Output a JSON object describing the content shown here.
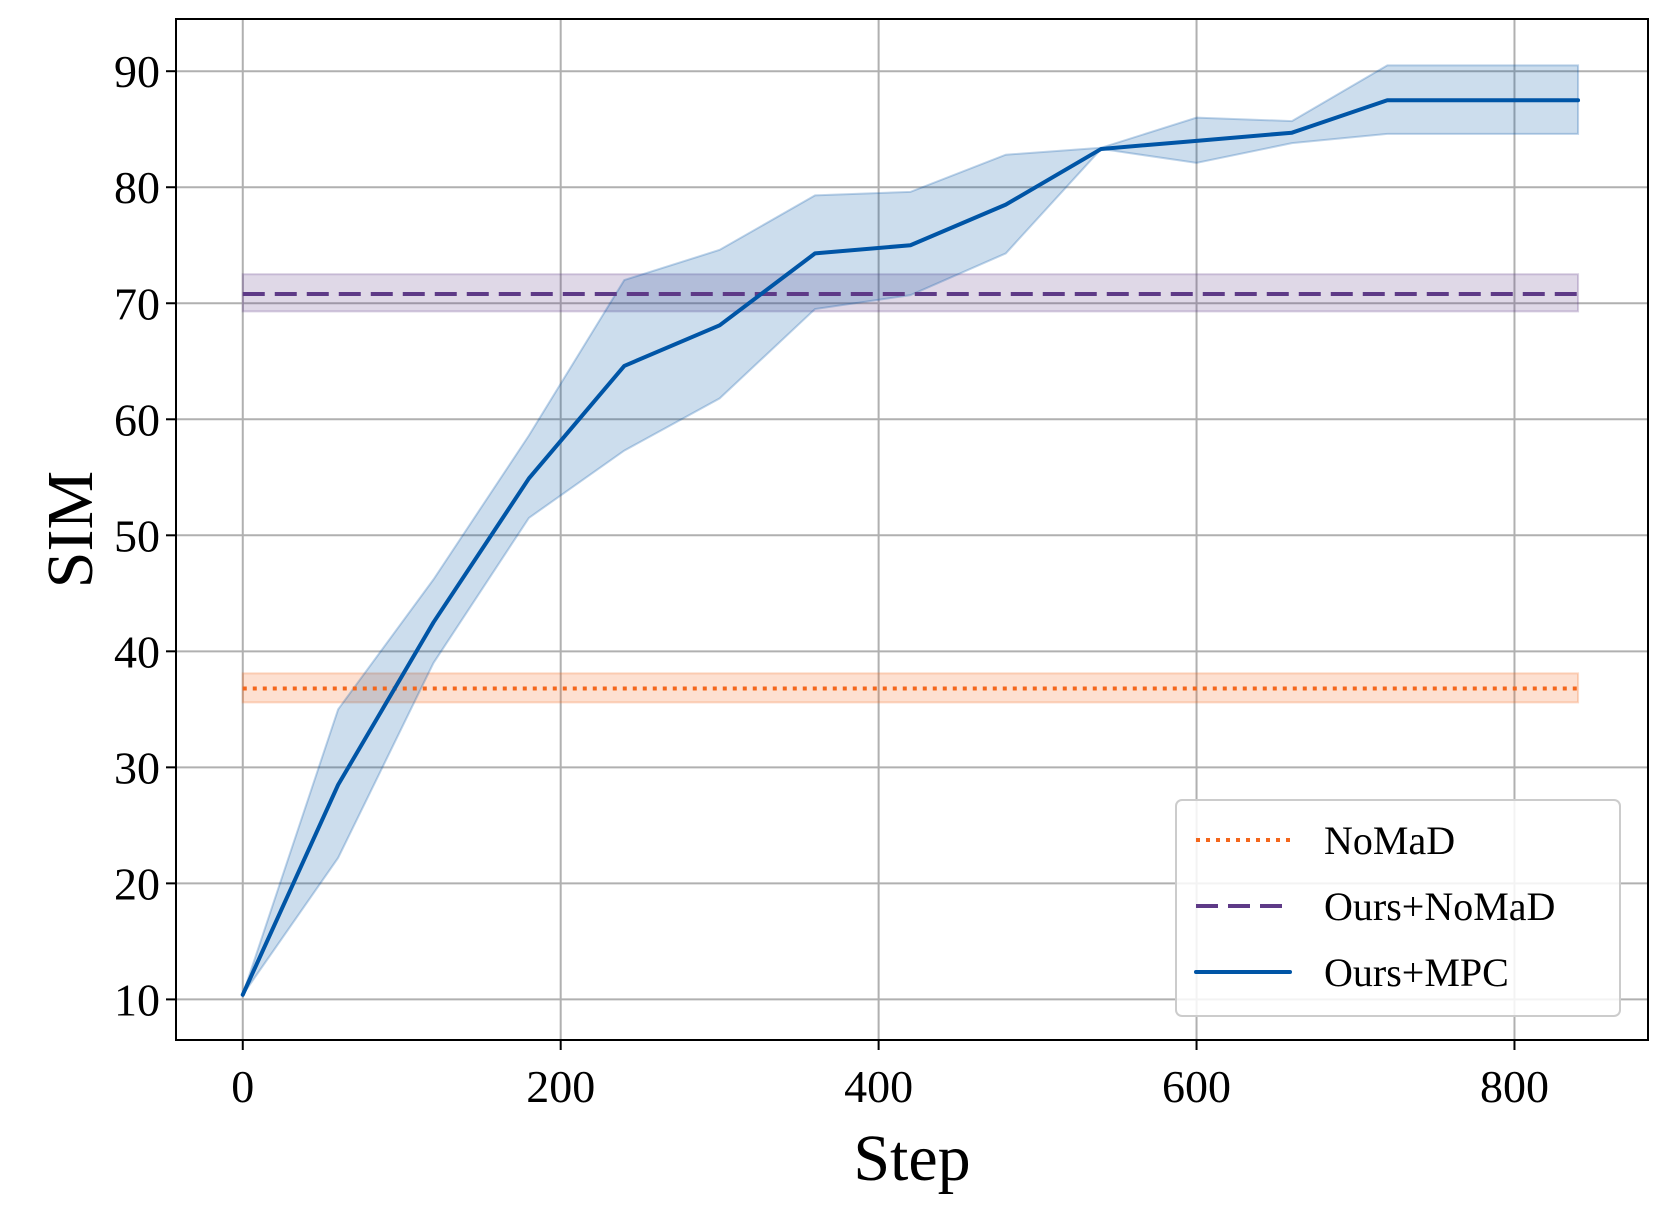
{
  "chart_data": {
    "type": "line",
    "title": "",
    "xlabel": "Step",
    "ylabel": "SIM",
    "xlim": [
      -42,
      884
    ],
    "ylim": [
      6.5,
      94.5
    ],
    "xticks": [
      0,
      200,
      400,
      600,
      800
    ],
    "yticks": [
      10,
      20,
      30,
      40,
      50,
      60,
      70,
      80,
      90
    ],
    "grid": true,
    "legend_position": "bottom-right",
    "series": [
      {
        "name": "NoMaD",
        "style": "dotted",
        "color": "#f4661b",
        "x": [
          0,
          840
        ],
        "values": [
          36.8,
          36.8
        ],
        "band_lower": [
          35.6,
          35.6
        ],
        "band_upper": [
          38.1,
          38.1
        ]
      },
      {
        "name": "Ours+NoMaD",
        "style": "dashed",
        "color": "#5e3a87",
        "x": [
          0,
          840
        ],
        "values": [
          70.8,
          70.8
        ],
        "band_lower": [
          69.3,
          69.3
        ],
        "band_upper": [
          72.5,
          72.5
        ]
      },
      {
        "name": "Ours+MPC",
        "style": "solid",
        "color": "#0055a6",
        "x": [
          0,
          60,
          120,
          180,
          240,
          300,
          360,
          420,
          480,
          540,
          600,
          660,
          720,
          780,
          840
        ],
        "values": [
          10.4,
          28.5,
          42.5,
          54.9,
          64.6,
          68.1,
          74.3,
          75.0,
          78.5,
          83.3,
          84.0,
          84.7,
          87.5,
          87.5,
          87.5
        ],
        "band_lower": [
          10.4,
          22.2,
          39.0,
          51.5,
          57.3,
          61.8,
          69.5,
          70.7,
          74.3,
          83.3,
          82.1,
          83.8,
          84.6,
          84.6,
          84.6
        ],
        "band_upper": [
          10.4,
          35.0,
          46.2,
          58.6,
          72.0,
          74.6,
          79.3,
          79.6,
          82.8,
          83.4,
          86.0,
          85.7,
          90.5,
          90.5,
          90.5
        ]
      }
    ]
  }
}
